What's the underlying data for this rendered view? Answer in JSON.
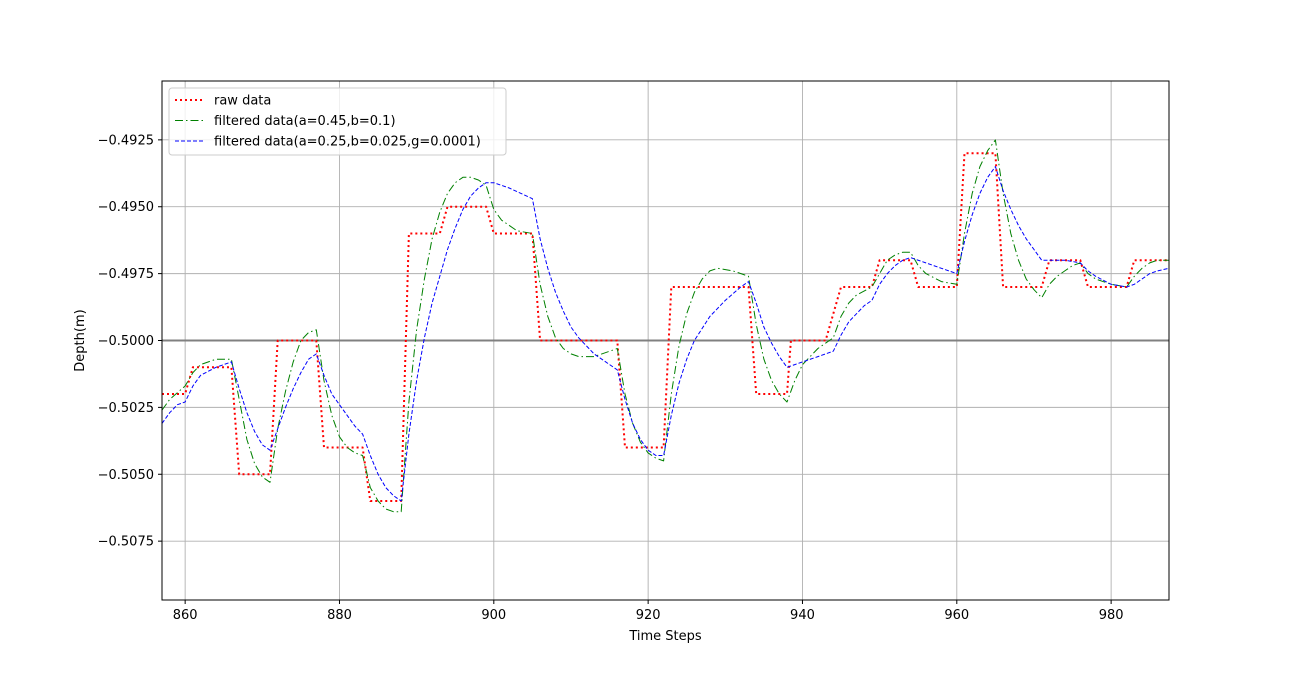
{
  "chart_data": {
    "type": "line",
    "xlabel": "Time Steps",
    "ylabel": "Depth(m)",
    "xlim": [
      857,
      987.5
    ],
    "ylim": [
      -0.5097,
      -0.4903
    ],
    "xticks": [
      860,
      880,
      900,
      920,
      940,
      960,
      980
    ],
    "xtick_labels": [
      "860",
      "880",
      "900",
      "920",
      "940",
      "960",
      "980"
    ],
    "yticks": [
      -0.4925,
      -0.495,
      -0.4975,
      -0.5,
      -0.5025,
      -0.505,
      -0.5075
    ],
    "ytick_labels": [
      "−0.4925",
      "−0.4950",
      "−0.4975",
      "−0.5000",
      "−0.5025",
      "−0.5050",
      "−0.5075"
    ],
    "grid": true,
    "legend_position": "upper-left",
    "reference_line": {
      "y": -0.5,
      "color": "#808080"
    },
    "series": [
      {
        "name": "raw data",
        "color": "#ff0000",
        "style": "dotted",
        "points": [
          [
            857,
            -0.502
          ],
          [
            860,
            -0.502
          ],
          [
            861,
            -0.501
          ],
          [
            866,
            -0.501
          ],
          [
            867,
            -0.505
          ],
          [
            871,
            -0.505
          ],
          [
            872,
            -0.5
          ],
          [
            876,
            -0.5
          ],
          [
            877,
            -0.5
          ],
          [
            878,
            -0.504
          ],
          [
            883,
            -0.504
          ],
          [
            884,
            -0.506
          ],
          [
            887,
            -0.506
          ],
          [
            888,
            -0.506
          ],
          [
            889,
            -0.496
          ],
          [
            893,
            -0.496
          ],
          [
            894,
            -0.495
          ],
          [
            899,
            -0.495
          ],
          [
            900,
            -0.496
          ],
          [
            905,
            -0.496
          ],
          [
            906,
            -0.5
          ],
          [
            915,
            -0.5
          ],
          [
            916,
            -0.5
          ],
          [
            917,
            -0.504
          ],
          [
            921,
            -0.504
          ],
          [
            922,
            -0.504
          ],
          [
            923,
            -0.498
          ],
          [
            932,
            -0.498
          ],
          [
            933,
            -0.498
          ],
          [
            934,
            -0.502
          ],
          [
            938,
            -0.502
          ],
          [
            938.5,
            -0.5
          ],
          [
            943,
            -0.5
          ],
          [
            945,
            -0.498
          ],
          [
            949,
            -0.498
          ],
          [
            950,
            -0.497
          ],
          [
            954,
            -0.497
          ],
          [
            955,
            -0.498
          ],
          [
            960,
            -0.498
          ],
          [
            961,
            -0.493
          ],
          [
            965,
            -0.493
          ],
          [
            966,
            -0.498
          ],
          [
            971,
            -0.498
          ],
          [
            972,
            -0.497
          ],
          [
            976,
            -0.497
          ],
          [
            977,
            -0.498
          ],
          [
            982,
            -0.498
          ],
          [
            983,
            -0.497
          ],
          [
            987.5,
            -0.497
          ]
        ]
      },
      {
        "name": "filtered data(a=0.45,b=0.1)",
        "color": "#008000",
        "style": "dashdot",
        "points": [
          [
            857,
            -0.5026
          ],
          [
            858,
            -0.5022
          ],
          [
            860,
            -0.5017
          ],
          [
            861,
            -0.5012
          ],
          [
            862,
            -0.5009
          ],
          [
            864,
            -0.5007
          ],
          [
            866,
            -0.5007
          ],
          [
            867,
            -0.5022
          ],
          [
            868,
            -0.5037
          ],
          [
            869,
            -0.5046
          ],
          [
            870,
            -0.5051
          ],
          [
            871,
            -0.5053
          ],
          [
            872,
            -0.5033
          ],
          [
            873,
            -0.5019
          ],
          [
            874,
            -0.5008
          ],
          [
            875,
            -0.5
          ],
          [
            876,
            -0.4997
          ],
          [
            877,
            -0.4996
          ],
          [
            878,
            -0.5015
          ],
          [
            879,
            -0.5028
          ],
          [
            880,
            -0.5036
          ],
          [
            881,
            -0.504
          ],
          [
            882,
            -0.5042
          ],
          [
            883,
            -0.5043
          ],
          [
            884,
            -0.5055
          ],
          [
            885,
            -0.506
          ],
          [
            886,
            -0.5063
          ],
          [
            887,
            -0.5064
          ],
          [
            888,
            -0.5064
          ],
          [
            889,
            -0.5023
          ],
          [
            890,
            -0.4996
          ],
          [
            891,
            -0.4977
          ],
          [
            892,
            -0.4962
          ],
          [
            893,
            -0.4952
          ],
          [
            894,
            -0.4945
          ],
          [
            895,
            -0.4941
          ],
          [
            896,
            -0.4939
          ],
          [
            897,
            -0.4939
          ],
          [
            898,
            -0.494
          ],
          [
            899,
            -0.4942
          ],
          [
            900,
            -0.4951
          ],
          [
            901,
            -0.4955
          ],
          [
            903,
            -0.4959
          ],
          [
            905,
            -0.496
          ],
          [
            906,
            -0.4979
          ],
          [
            907,
            -0.4991
          ],
          [
            908,
            -0.4999
          ],
          [
            909,
            -0.5003
          ],
          [
            910,
            -0.5005
          ],
          [
            911,
            -0.5006
          ],
          [
            913,
            -0.5006
          ],
          [
            915,
            -0.5004
          ],
          [
            916,
            -0.5003
          ],
          [
            917,
            -0.502
          ],
          [
            918,
            -0.5031
          ],
          [
            919,
            -0.5038
          ],
          [
            920,
            -0.5042
          ],
          [
            921,
            -0.5044
          ],
          [
            922,
            -0.5045
          ],
          [
            923,
            -0.502
          ],
          [
            924,
            -0.5002
          ],
          [
            925,
            -0.499
          ],
          [
            926,
            -0.4982
          ],
          [
            927,
            -0.4977
          ],
          [
            928,
            -0.4974
          ],
          [
            929,
            -0.4973
          ],
          [
            931,
            -0.4974
          ],
          [
            933,
            -0.4976
          ],
          [
            934,
            -0.4994
          ],
          [
            935,
            -0.5007
          ],
          [
            936,
            -0.5015
          ],
          [
            937,
            -0.502
          ],
          [
            938,
            -0.5023
          ],
          [
            939,
            -0.5015
          ],
          [
            940,
            -0.5009
          ],
          [
            942,
            -0.5003
          ],
          [
            944,
            -0.4999
          ],
          [
            945,
            -0.4991
          ],
          [
            946,
            -0.4986
          ],
          [
            947,
            -0.4983
          ],
          [
            949,
            -0.498
          ],
          [
            950,
            -0.4975
          ],
          [
            951,
            -0.497
          ],
          [
            952,
            -0.4968
          ],
          [
            953,
            -0.4967
          ],
          [
            954,
            -0.4967
          ],
          [
            955,
            -0.4972
          ],
          [
            956,
            -0.4975
          ],
          [
            958,
            -0.4978
          ],
          [
            960,
            -0.4979
          ],
          [
            961,
            -0.496
          ],
          [
            962,
            -0.4945
          ],
          [
            963,
            -0.4935
          ],
          [
            964,
            -0.4929
          ],
          [
            965,
            -0.4925
          ],
          [
            966,
            -0.4945
          ],
          [
            967,
            -0.496
          ],
          [
            968,
            -0.497
          ],
          [
            969,
            -0.4977
          ],
          [
            970,
            -0.4981
          ],
          [
            971,
            -0.4984
          ],
          [
            972,
            -0.4979
          ],
          [
            973,
            -0.4976
          ],
          [
            974,
            -0.4974
          ],
          [
            975,
            -0.4972
          ],
          [
            976,
            -0.4971
          ],
          [
            977,
            -0.4975
          ],
          [
            978,
            -0.4977
          ],
          [
            980,
            -0.4979
          ],
          [
            982,
            -0.498
          ],
          [
            983,
            -0.4976
          ],
          [
            984,
            -0.4973
          ],
          [
            985,
            -0.4971
          ],
          [
            986,
            -0.497
          ],
          [
            987.5,
            -0.497
          ]
        ]
      },
      {
        "name": "filtered data(a=0.25,b=0.025,g=0.0001)",
        "color": "#0000ff",
        "style": "dashed",
        "points": [
          [
            857,
            -0.5031
          ],
          [
            858,
            -0.5027
          ],
          [
            859,
            -0.5024
          ],
          [
            860,
            -0.5023
          ],
          [
            861,
            -0.5017
          ],
          [
            862,
            -0.5013
          ],
          [
            864,
            -0.501
          ],
          [
            866,
            -0.5008
          ],
          [
            867,
            -0.5018
          ],
          [
            868,
            -0.5027
          ],
          [
            869,
            -0.5034
          ],
          [
            870,
            -0.5039
          ],
          [
            871,
            -0.5041
          ],
          [
            872,
            -0.5033
          ],
          [
            873,
            -0.5025
          ],
          [
            874,
            -0.5018
          ],
          [
            875,
            -0.5012
          ],
          [
            876,
            -0.5007
          ],
          [
            877,
            -0.5005
          ],
          [
            878,
            -0.5013
          ],
          [
            879,
            -0.502
          ],
          [
            880,
            -0.5024
          ],
          [
            881,
            -0.5028
          ],
          [
            882,
            -0.5032
          ],
          [
            883,
            -0.5035
          ],
          [
            884,
            -0.5043
          ],
          [
            885,
            -0.505
          ],
          [
            886,
            -0.5055
          ],
          [
            887,
            -0.5058
          ],
          [
            888,
            -0.506
          ],
          [
            889,
            -0.5035
          ],
          [
            890,
            -0.5015
          ],
          [
            891,
            -0.4999
          ],
          [
            892,
            -0.4986
          ],
          [
            893,
            -0.4976
          ],
          [
            894,
            -0.4966
          ],
          [
            895,
            -0.4958
          ],
          [
            896,
            -0.4951
          ],
          [
            897,
            -0.4946
          ],
          [
            898,
            -0.4943
          ],
          [
            899,
            -0.4941
          ],
          [
            900,
            -0.4941
          ],
          [
            902,
            -0.4943
          ],
          [
            905,
            -0.4947
          ],
          [
            906,
            -0.4962
          ],
          [
            907,
            -0.4973
          ],
          [
            908,
            -0.4982
          ],
          [
            909,
            -0.4989
          ],
          [
            910,
            -0.4995
          ],
          [
            911,
            -0.4999
          ],
          [
            913,
            -0.5005
          ],
          [
            915,
            -0.5009
          ],
          [
            916,
            -0.5011
          ],
          [
            917,
            -0.5022
          ],
          [
            918,
            -0.5031
          ],
          [
            919,
            -0.5037
          ],
          [
            920,
            -0.5041
          ],
          [
            921,
            -0.5043
          ],
          [
            922,
            -0.5043
          ],
          [
            923,
            -0.5028
          ],
          [
            924,
            -0.5016
          ],
          [
            925,
            -0.5007
          ],
          [
            926,
            -0.5
          ],
          [
            928,
            -0.4991
          ],
          [
            930,
            -0.4985
          ],
          [
            932,
            -0.498
          ],
          [
            933,
            -0.4978
          ],
          [
            934,
            -0.4986
          ],
          [
            935,
            -0.4995
          ],
          [
            936,
            -0.5001
          ],
          [
            937,
            -0.5006
          ],
          [
            938,
            -0.501
          ],
          [
            939,
            -0.5009
          ],
          [
            940,
            -0.5008
          ],
          [
            942,
            -0.5006
          ],
          [
            944,
            -0.5004
          ],
          [
            945,
            -0.4998
          ],
          [
            946,
            -0.4993
          ],
          [
            948,
            -0.4987
          ],
          [
            949,
            -0.4985
          ],
          [
            950,
            -0.4979
          ],
          [
            951,
            -0.4975
          ],
          [
            952,
            -0.4972
          ],
          [
            953,
            -0.497
          ],
          [
            954,
            -0.4969
          ],
          [
            956,
            -0.4971
          ],
          [
            958,
            -0.4973
          ],
          [
            960,
            -0.4975
          ],
          [
            961,
            -0.4963
          ],
          [
            962,
            -0.4953
          ],
          [
            963,
            -0.4945
          ],
          [
            964,
            -0.4939
          ],
          [
            965,
            -0.4935
          ],
          [
            966,
            -0.4944
          ],
          [
            967,
            -0.4951
          ],
          [
            968,
            -0.4957
          ],
          [
            969,
            -0.4962
          ],
          [
            970,
            -0.4966
          ],
          [
            971,
            -0.497
          ],
          [
            972,
            -0.497
          ],
          [
            974,
            -0.497
          ],
          [
            976,
            -0.4971
          ],
          [
            977,
            -0.4974
          ],
          [
            978,
            -0.4976
          ],
          [
            980,
            -0.4979
          ],
          [
            982,
            -0.498
          ],
          [
            983,
            -0.4979
          ],
          [
            984,
            -0.4977
          ],
          [
            985,
            -0.4975
          ],
          [
            986,
            -0.4974
          ],
          [
            987.5,
            -0.4973
          ]
        ]
      }
    ]
  }
}
